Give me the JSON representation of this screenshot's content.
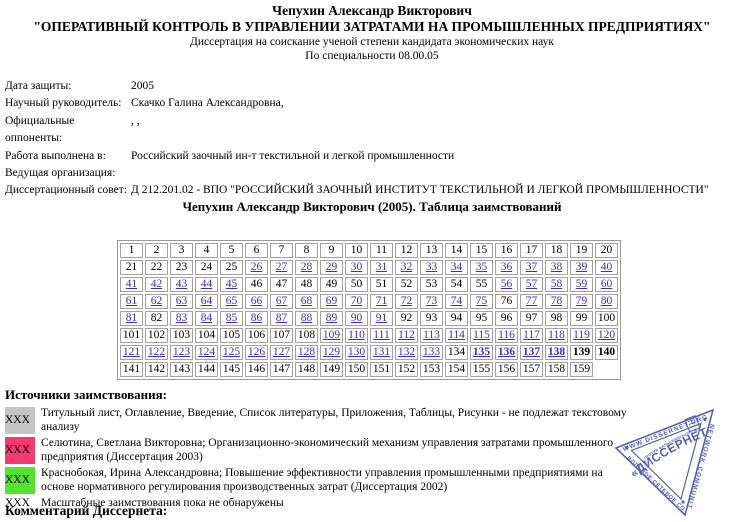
{
  "header": {
    "author": "Чепухин Александр Викторович",
    "title": "\"ОПЕРАТИВНЫЙ КОНТРОЛЬ В УПРАВЛЕНИИ ЗАТРАТАМИ НА ПРОМЫШЛЕННЫХ ПРЕДПРИЯТИЯХ\"",
    "subtitle": "Диссертация на соискание ученой степени кандидата экономических наук",
    "specialty": "По специальности 08.00.05"
  },
  "meta": {
    "rows": [
      {
        "label": "Дата защиты:",
        "value": "2005"
      },
      {
        "label": "Научный руководитель:",
        "value": "Скачко Галина Александровна,"
      },
      {
        "label": "Официальные оппоненты:",
        "value": ", ,"
      },
      {
        "label": "Работа выполнена в:",
        "value": "Российский заочный ин-т текстильной и легкой промышленности"
      },
      {
        "label": "Ведущая организация:",
        "value": ""
      },
      {
        "label": "Диссертационный совет:",
        "value": "Д 212.201.02 - ВПО \"РОССИЙСКИЙ ЗАОЧНЫЙ ИНСТИТУТ ТЕКСТИЛЬНОЙ И ЛЕГКОЙ ПРОМЫШЛЕННОСТИ\""
      }
    ]
  },
  "table": {
    "heading": "Чепухин Александр Викторович (2005). Таблица заимствований",
    "columns": 20,
    "total_pages": 159,
    "ranges": [
      {
        "from": 1,
        "to": 8,
        "type": "gray"
      },
      {
        "from": 9,
        "to": 25,
        "type": "plain"
      },
      {
        "from": 26,
        "to": 45,
        "type": "pink"
      },
      {
        "from": 46,
        "to": 55,
        "type": "plain"
      },
      {
        "from": 56,
        "to": 56,
        "type": "pink"
      },
      {
        "from": 57,
        "to": 57,
        "type": "link"
      },
      {
        "from": 58,
        "to": 68,
        "type": "pink"
      },
      {
        "from": 69,
        "to": 70,
        "type": "link"
      },
      {
        "from": 71,
        "to": 75,
        "type": "pink"
      },
      {
        "from": 76,
        "to": 76,
        "type": "plain"
      },
      {
        "from": 77,
        "to": 78,
        "type": "pink"
      },
      {
        "from": 79,
        "to": 79,
        "type": "link"
      },
      {
        "from": 80,
        "to": 81,
        "type": "pink"
      },
      {
        "from": 82,
        "to": 82,
        "type": "plain"
      },
      {
        "from": 83,
        "to": 91,
        "type": "pink"
      },
      {
        "from": 92,
        "to": 108,
        "type": "plain"
      },
      {
        "from": 109,
        "to": 118,
        "type": "pink"
      },
      {
        "from": 119,
        "to": 133,
        "type": "green"
      },
      {
        "from": 134,
        "to": 134,
        "type": "plain"
      },
      {
        "from": 135,
        "to": 138,
        "type": "pink-bold"
      },
      {
        "from": 139,
        "to": 140,
        "type": "plain-bold"
      },
      {
        "from": 141,
        "to": 159,
        "type": "gray"
      }
    ]
  },
  "legend": {
    "heading": "Источники заимствования:",
    "swatch_label": "XXX",
    "items": [
      {
        "color_key": "gray",
        "text": "Титульный лист, Оглавление, Введение, Список литературы, Приложения, Таблицы, Рисунки - не подлежат текстовому анализу"
      },
      {
        "color_key": "pink",
        "text": "Селютина, Светлана Викторовна; Организационно-экономический механизм управления затратами промышленного предприятия (Диссертация 2003)"
      },
      {
        "color_key": "green",
        "text": "Краснобокая, Ирина Александровна; Повышение эффективности управления промышленными предприятиями на основе нормативного регулирования производственных затрат (Диссертация 2002)"
      },
      {
        "color_key": "none",
        "text": "Масштабные заимствования пока не обнаружены"
      }
    ]
  },
  "comment": {
    "heading": "Комментарий Диссернета:"
  },
  "stamp": {
    "edge_top": "WWW.DISSERNET.ORG",
    "edge_right": "NETWORK COMMUNITY",
    "edge_bottom": "ВОЛЬНОЕ СЕТЕВОЕ СООБЩЕСТВО",
    "motto": "ПРОТИВ ФАЛЬСИФИКАЦИЙ, МОШЕННИЧЕСТВА И ЛЖИ",
    "center": "«ДИССЕРНЕТ»"
  },
  "colors": {
    "gray": "#c5c5c5",
    "pink": "#f43a6e",
    "green": "#53e42f",
    "link": "#3d2ec4",
    "stamp": "#3b49b5"
  }
}
